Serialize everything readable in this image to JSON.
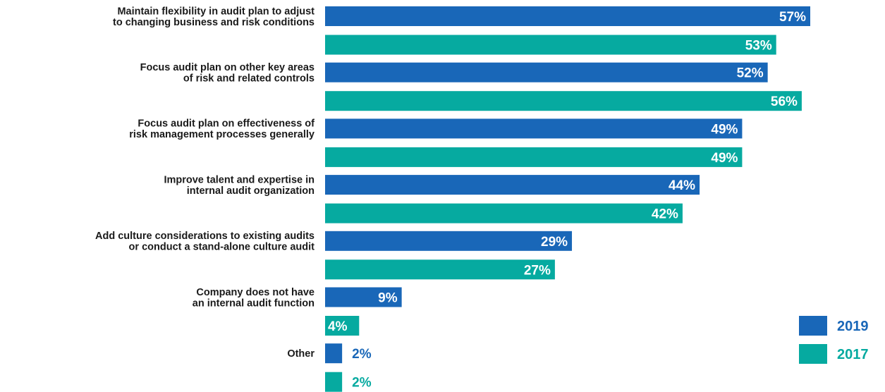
{
  "colors": {
    "s2019": "#1967b8",
    "s2017": "#06aaa0",
    "label": "#1a1a1a"
  },
  "chart_data": {
    "type": "bar",
    "orientation": "horizontal",
    "categories": [
      [
        "Maintain flexibility in audit plan to adjust",
        "to changing business and risk conditions"
      ],
      [
        "Focus audit plan on other key areas",
        "of risk and related controls"
      ],
      [
        "Focus audit plan on effectiveness of",
        "risk management processes generally"
      ],
      [
        "Improve talent and expertise in",
        "internal audit organization"
      ],
      [
        "Add culture considerations to existing audits",
        "or conduct a stand-alone culture audit"
      ],
      [
        "Company does not have",
        "an internal audit function"
      ],
      [
        "Other"
      ]
    ],
    "series": [
      {
        "name": "2019",
        "color": "#1967b8",
        "values": [
          57,
          52,
          49,
          44,
          29,
          9,
          2
        ],
        "labels": [
          "57%",
          "52%",
          "49%",
          "44%",
          "29%",
          "9%",
          "2%"
        ]
      },
      {
        "name": "2017",
        "color": "#06aaa0",
        "values": [
          53,
          56,
          49,
          42,
          27,
          4,
          2
        ],
        "labels": [
          "53%",
          "56%",
          "49%",
          "42%",
          "27%",
          "4%",
          "2%"
        ]
      }
    ],
    "legend": [
      "2019",
      "2017"
    ],
    "legend_position": "bottom-right",
    "xlim": [
      0,
      57
    ],
    "grid": false
  }
}
